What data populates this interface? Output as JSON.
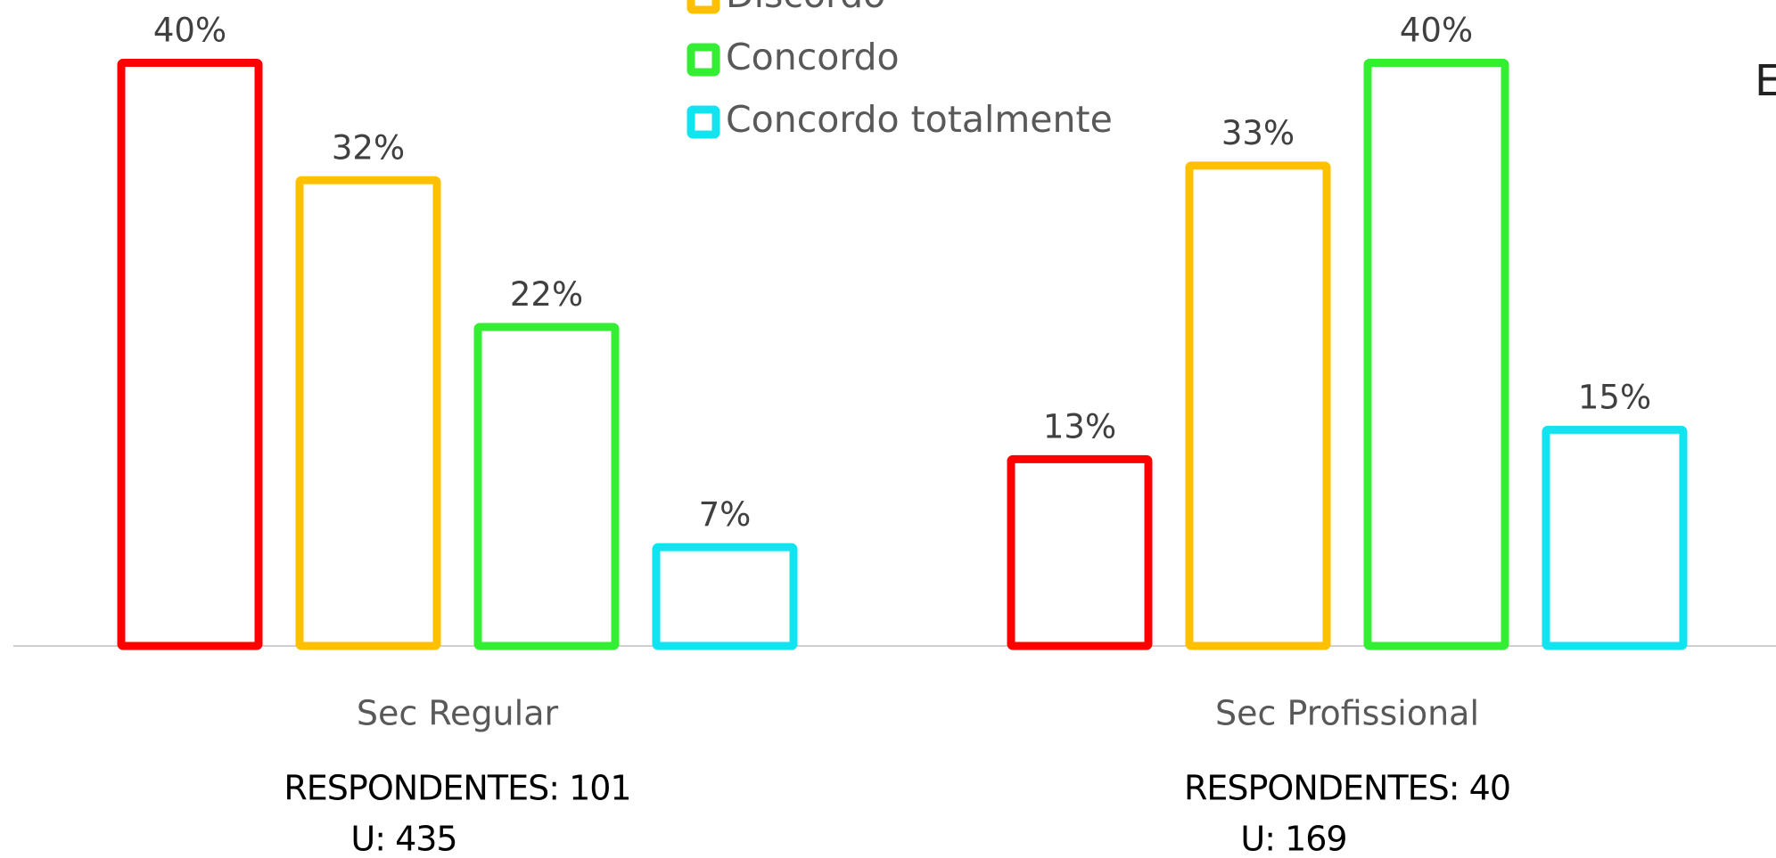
{
  "chart_data": {
    "type": "bar",
    "categories": [
      "Sec Regular",
      "Sec Profissional"
    ],
    "category_notes": [
      [
        "RESPONDENTES: 101",
        "U: 435"
      ],
      [
        "RESPONDENTES: 40",
        "U: 169"
      ]
    ],
    "series": [
      {
        "name": null,
        "color": "#ff0000",
        "values": [
          40,
          13
        ],
        "value_labels": [
          "40%",
          "13%"
        ]
      },
      {
        "name": "Discordo",
        "color": "#ffc000",
        "values": [
          32,
          33
        ],
        "value_labels": [
          "32%",
          "33%"
        ]
      },
      {
        "name": "Concordo",
        "color": "#33ee33",
        "values": [
          22,
          40
        ],
        "value_labels": [
          "22%",
          "40%"
        ]
      },
      {
        "name": "Concordo totalmente",
        "color": "#11e3f0",
        "values": [
          7,
          15
        ],
        "value_labels": [
          "7%",
          "15%"
        ]
      }
    ],
    "ylim": [
      0,
      40
    ],
    "annotation": "E"
  }
}
